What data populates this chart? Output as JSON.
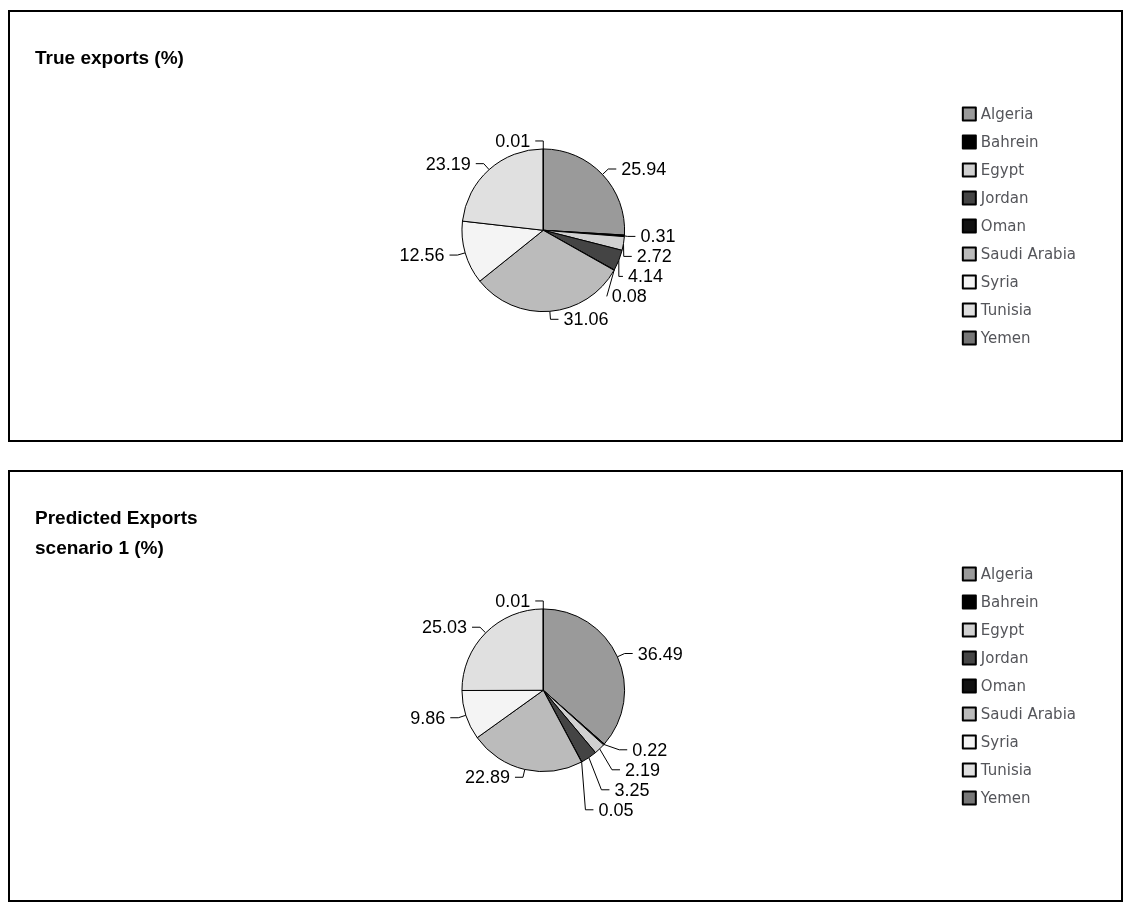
{
  "chart_data": [
    {
      "type": "pie",
      "title": "True exports (%)",
      "categories": [
        "Algeria",
        "Bahrein",
        "Egypt",
        "Jordan",
        "Oman",
        "Saudi Arabia",
        "Syria",
        "Tunisia",
        "Yemen"
      ],
      "values": [
        25.94,
        0.31,
        2.72,
        4.14,
        0.08,
        31.06,
        12.56,
        23.19,
        0.01
      ],
      "colors": [
        "#9a9a9a",
        "#000000",
        "#d0d0d0",
        "#444444",
        "#111111",
        "#bbbbbb",
        "#f4f4f4",
        "#e0e0e0",
        "#777777"
      ],
      "data_labels": true,
      "legend": "right"
    },
    {
      "type": "pie",
      "title": "Predicted Exports scenario 1 (%)",
      "categories": [
        "Algeria",
        "Bahrein",
        "Egypt",
        "Jordan",
        "Oman",
        "Saudi Arabia",
        "Syria",
        "Tunisia",
        "Yemen"
      ],
      "values": [
        36.49,
        0.22,
        2.19,
        3.25,
        0.05,
        22.89,
        9.86,
        25.03,
        0.01
      ],
      "colors": [
        "#9a9a9a",
        "#000000",
        "#d0d0d0",
        "#444444",
        "#111111",
        "#bbbbbb",
        "#f4f4f4",
        "#e0e0e0",
        "#777777"
      ],
      "data_labels": true,
      "legend": "right"
    }
  ]
}
